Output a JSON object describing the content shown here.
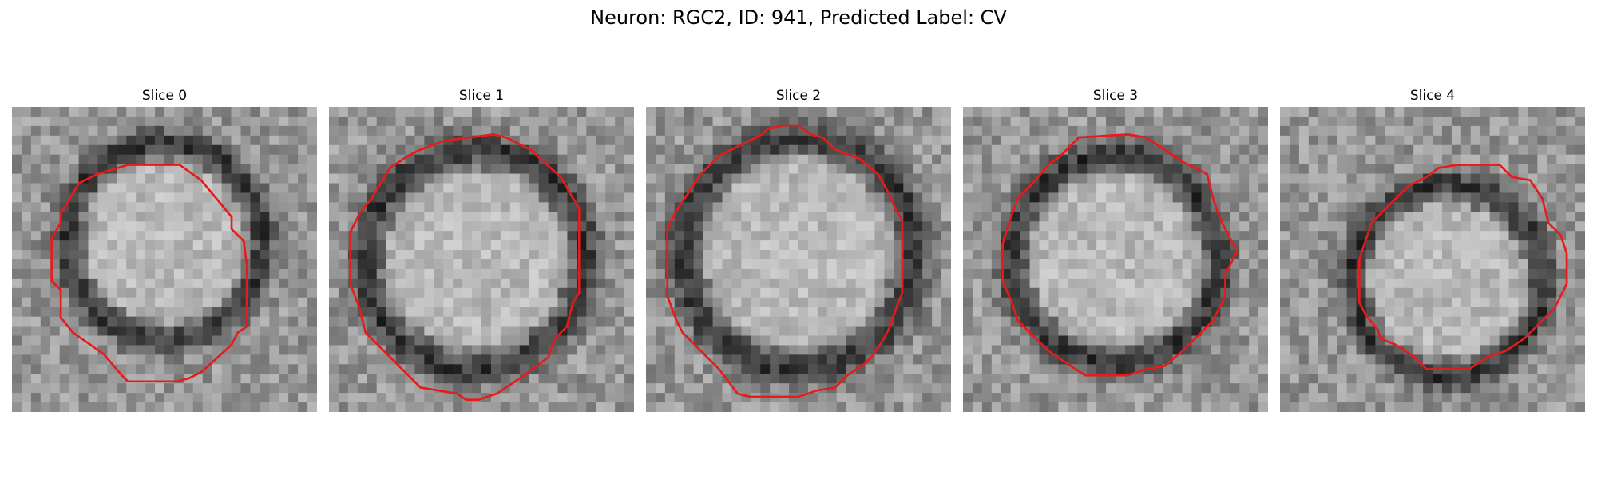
{
  "figure": {
    "title": "Neuron: RGC2, ID: 941, Predicted Label: CV"
  },
  "panels": [
    {
      "title": "Slice 0",
      "outline_color": "#e61b1b",
      "center": [
        0.5,
        0.44
      ],
      "ring_radius": 0.34,
      "outline": [
        [
          0.38,
          0.19
        ],
        [
          0.55,
          0.19
        ],
        [
          0.62,
          0.24
        ],
        [
          0.72,
          0.36
        ],
        [
          0.72,
          0.4
        ],
        [
          0.76,
          0.44
        ],
        [
          0.77,
          0.52
        ],
        [
          0.77,
          0.62
        ],
        [
          0.77,
          0.72
        ],
        [
          0.74,
          0.74
        ],
        [
          0.72,
          0.78
        ],
        [
          0.62,
          0.87
        ],
        [
          0.58,
          0.89
        ],
        [
          0.54,
          0.9
        ],
        [
          0.38,
          0.9
        ],
        [
          0.36,
          0.88
        ],
        [
          0.3,
          0.81
        ],
        [
          0.2,
          0.74
        ],
        [
          0.16,
          0.69
        ],
        [
          0.16,
          0.6
        ],
        [
          0.13,
          0.57
        ],
        [
          0.13,
          0.43
        ],
        [
          0.16,
          0.38
        ],
        [
          0.16,
          0.35
        ],
        [
          0.22,
          0.25
        ],
        [
          0.28,
          0.22
        ]
      ]
    },
    {
      "title": "Slice 1",
      "outline_color": "#e61b1b",
      "center": [
        0.48,
        0.5
      ],
      "ring_radius": 0.38,
      "outline": [
        [
          0.38,
          0.11
        ],
        [
          0.54,
          0.09
        ],
        [
          0.58,
          0.1
        ],
        [
          0.66,
          0.14
        ],
        [
          0.76,
          0.23
        ],
        [
          0.8,
          0.3
        ],
        [
          0.82,
          0.33
        ],
        [
          0.82,
          0.61
        ],
        [
          0.8,
          0.64
        ],
        [
          0.78,
          0.72
        ],
        [
          0.74,
          0.76
        ],
        [
          0.72,
          0.82
        ],
        [
          0.64,
          0.88
        ],
        [
          0.55,
          0.94
        ],
        [
          0.49,
          0.96
        ],
        [
          0.45,
          0.96
        ],
        [
          0.42,
          0.94
        ],
        [
          0.3,
          0.92
        ],
        [
          0.22,
          0.84
        ],
        [
          0.16,
          0.78
        ],
        [
          0.12,
          0.74
        ],
        [
          0.1,
          0.66
        ],
        [
          0.07,
          0.58
        ],
        [
          0.07,
          0.41
        ],
        [
          0.1,
          0.35
        ],
        [
          0.14,
          0.3
        ],
        [
          0.2,
          0.2
        ],
        [
          0.26,
          0.16
        ],
        [
          0.3,
          0.14
        ]
      ]
    },
    {
      "title": "Slice 2",
      "outline_color": "#e61b1b",
      "center": [
        0.5,
        0.48
      ],
      "ring_radius": 0.4,
      "outline": [
        [
          0.38,
          0.09
        ],
        [
          0.4,
          0.07
        ],
        [
          0.46,
          0.06
        ],
        [
          0.5,
          0.06
        ],
        [
          0.54,
          0.09
        ],
        [
          0.58,
          0.1
        ],
        [
          0.62,
          0.14
        ],
        [
          0.7,
          0.17
        ],
        [
          0.76,
          0.22
        ],
        [
          0.8,
          0.29
        ],
        [
          0.82,
          0.34
        ],
        [
          0.84,
          0.37
        ],
        [
          0.84,
          0.61
        ],
        [
          0.82,
          0.66
        ],
        [
          0.8,
          0.72
        ],
        [
          0.78,
          0.76
        ],
        [
          0.74,
          0.82
        ],
        [
          0.72,
          0.84
        ],
        [
          0.66,
          0.88
        ],
        [
          0.62,
          0.92
        ],
        [
          0.56,
          0.93
        ],
        [
          0.5,
          0.95
        ],
        [
          0.34,
          0.95
        ],
        [
          0.3,
          0.94
        ],
        [
          0.24,
          0.86
        ],
        [
          0.16,
          0.78
        ],
        [
          0.12,
          0.74
        ],
        [
          0.1,
          0.7
        ],
        [
          0.07,
          0.62
        ],
        [
          0.07,
          0.4
        ],
        [
          0.1,
          0.34
        ],
        [
          0.14,
          0.28
        ],
        [
          0.18,
          0.22
        ],
        [
          0.24,
          0.16
        ],
        [
          0.3,
          0.13
        ]
      ]
    },
    {
      "title": "Slice 3",
      "outline_color": "#e61b1b",
      "center": [
        0.5,
        0.5
      ],
      "ring_radius": 0.36,
      "outline": [
        [
          0.38,
          0.1
        ],
        [
          0.54,
          0.09
        ],
        [
          0.6,
          0.1
        ],
        [
          0.66,
          0.14
        ],
        [
          0.72,
          0.18
        ],
        [
          0.8,
          0.22
        ],
        [
          0.82,
          0.3
        ],
        [
          0.84,
          0.36
        ],
        [
          0.86,
          0.4
        ],
        [
          0.88,
          0.44
        ],
        [
          0.9,
          0.47
        ],
        [
          0.88,
          0.51
        ],
        [
          0.86,
          0.55
        ],
        [
          0.86,
          0.62
        ],
        [
          0.84,
          0.66
        ],
        [
          0.82,
          0.7
        ],
        [
          0.78,
          0.74
        ],
        [
          0.72,
          0.8
        ],
        [
          0.66,
          0.85
        ],
        [
          0.6,
          0.86
        ],
        [
          0.54,
          0.88
        ],
        [
          0.4,
          0.88
        ],
        [
          0.34,
          0.84
        ],
        [
          0.28,
          0.8
        ],
        [
          0.22,
          0.74
        ],
        [
          0.18,
          0.7
        ],
        [
          0.16,
          0.64
        ],
        [
          0.13,
          0.57
        ],
        [
          0.13,
          0.45
        ],
        [
          0.15,
          0.38
        ],
        [
          0.18,
          0.3
        ],
        [
          0.22,
          0.26
        ],
        [
          0.28,
          0.19
        ],
        [
          0.32,
          0.16
        ]
      ]
    },
    {
      "title": "Slice 4",
      "outline_color": "#e61b1b",
      "center": [
        0.55,
        0.57
      ],
      "ring_radius": 0.33,
      "outline": [
        [
          0.52,
          0.2
        ],
        [
          0.58,
          0.19
        ],
        [
          0.72,
          0.19
        ],
        [
          0.76,
          0.23
        ],
        [
          0.82,
          0.24
        ],
        [
          0.86,
          0.3
        ],
        [
          0.88,
          0.38
        ],
        [
          0.92,
          0.42
        ],
        [
          0.94,
          0.48
        ],
        [
          0.94,
          0.58
        ],
        [
          0.92,
          0.62
        ],
        [
          0.9,
          0.66
        ],
        [
          0.84,
          0.72
        ],
        [
          0.8,
          0.76
        ],
        [
          0.74,
          0.8
        ],
        [
          0.68,
          0.82
        ],
        [
          0.62,
          0.86
        ],
        [
          0.48,
          0.86
        ],
        [
          0.44,
          0.82
        ],
        [
          0.38,
          0.78
        ],
        [
          0.33,
          0.76
        ],
        [
          0.32,
          0.73
        ],
        [
          0.28,
          0.68
        ],
        [
          0.26,
          0.64
        ],
        [
          0.26,
          0.5
        ],
        [
          0.28,
          0.44
        ],
        [
          0.3,
          0.38
        ],
        [
          0.34,
          0.34
        ],
        [
          0.38,
          0.3
        ],
        [
          0.42,
          0.26
        ],
        [
          0.48,
          0.23
        ]
      ]
    }
  ]
}
